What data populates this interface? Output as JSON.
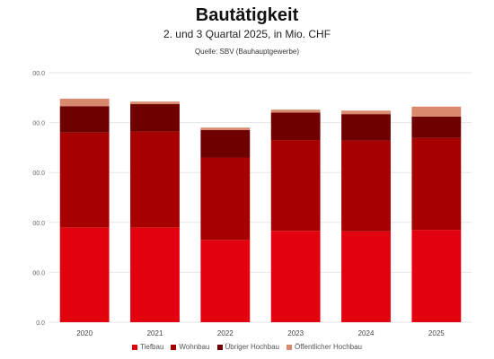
{
  "chart_data": {
    "type": "bar",
    "stacked": true,
    "title": "Bautätigkeit",
    "subtitle": "2. und 3 Quartal 2025, in Mio. CHF",
    "source": "Quelle: SBV (Bauhauptgewerbe)",
    "categories": [
      "2020",
      "2021",
      "2022",
      "2023",
      "2024",
      "2025"
    ],
    "y_tick_labels": [
      "0.0",
      "00.0",
      "00.0",
      "00.0",
      "00.0",
      "00.0"
    ],
    "ylim": [
      0,
      5
    ],
    "grid": true,
    "legend_position": "bottom",
    "series": [
      {
        "name": "Tiefbau",
        "color": "#e3000f",
        "values": [
          1.9,
          1.9,
          1.65,
          1.83,
          1.82,
          1.85
        ]
      },
      {
        "name": "Wohnbau",
        "color": "#a60000",
        "values": [
          1.9,
          1.92,
          1.65,
          1.82,
          1.82,
          1.84
        ]
      },
      {
        "name": "Übriger Hochbau",
        "color": "#6e0000",
        "values": [
          0.53,
          0.55,
          0.55,
          0.55,
          0.53,
          0.43
        ]
      },
      {
        "name": "Öffentlicher Hochbau",
        "color": "#d98a6e",
        "values": [
          0.15,
          0.05,
          0.05,
          0.06,
          0.07,
          0.2
        ]
      }
    ]
  }
}
